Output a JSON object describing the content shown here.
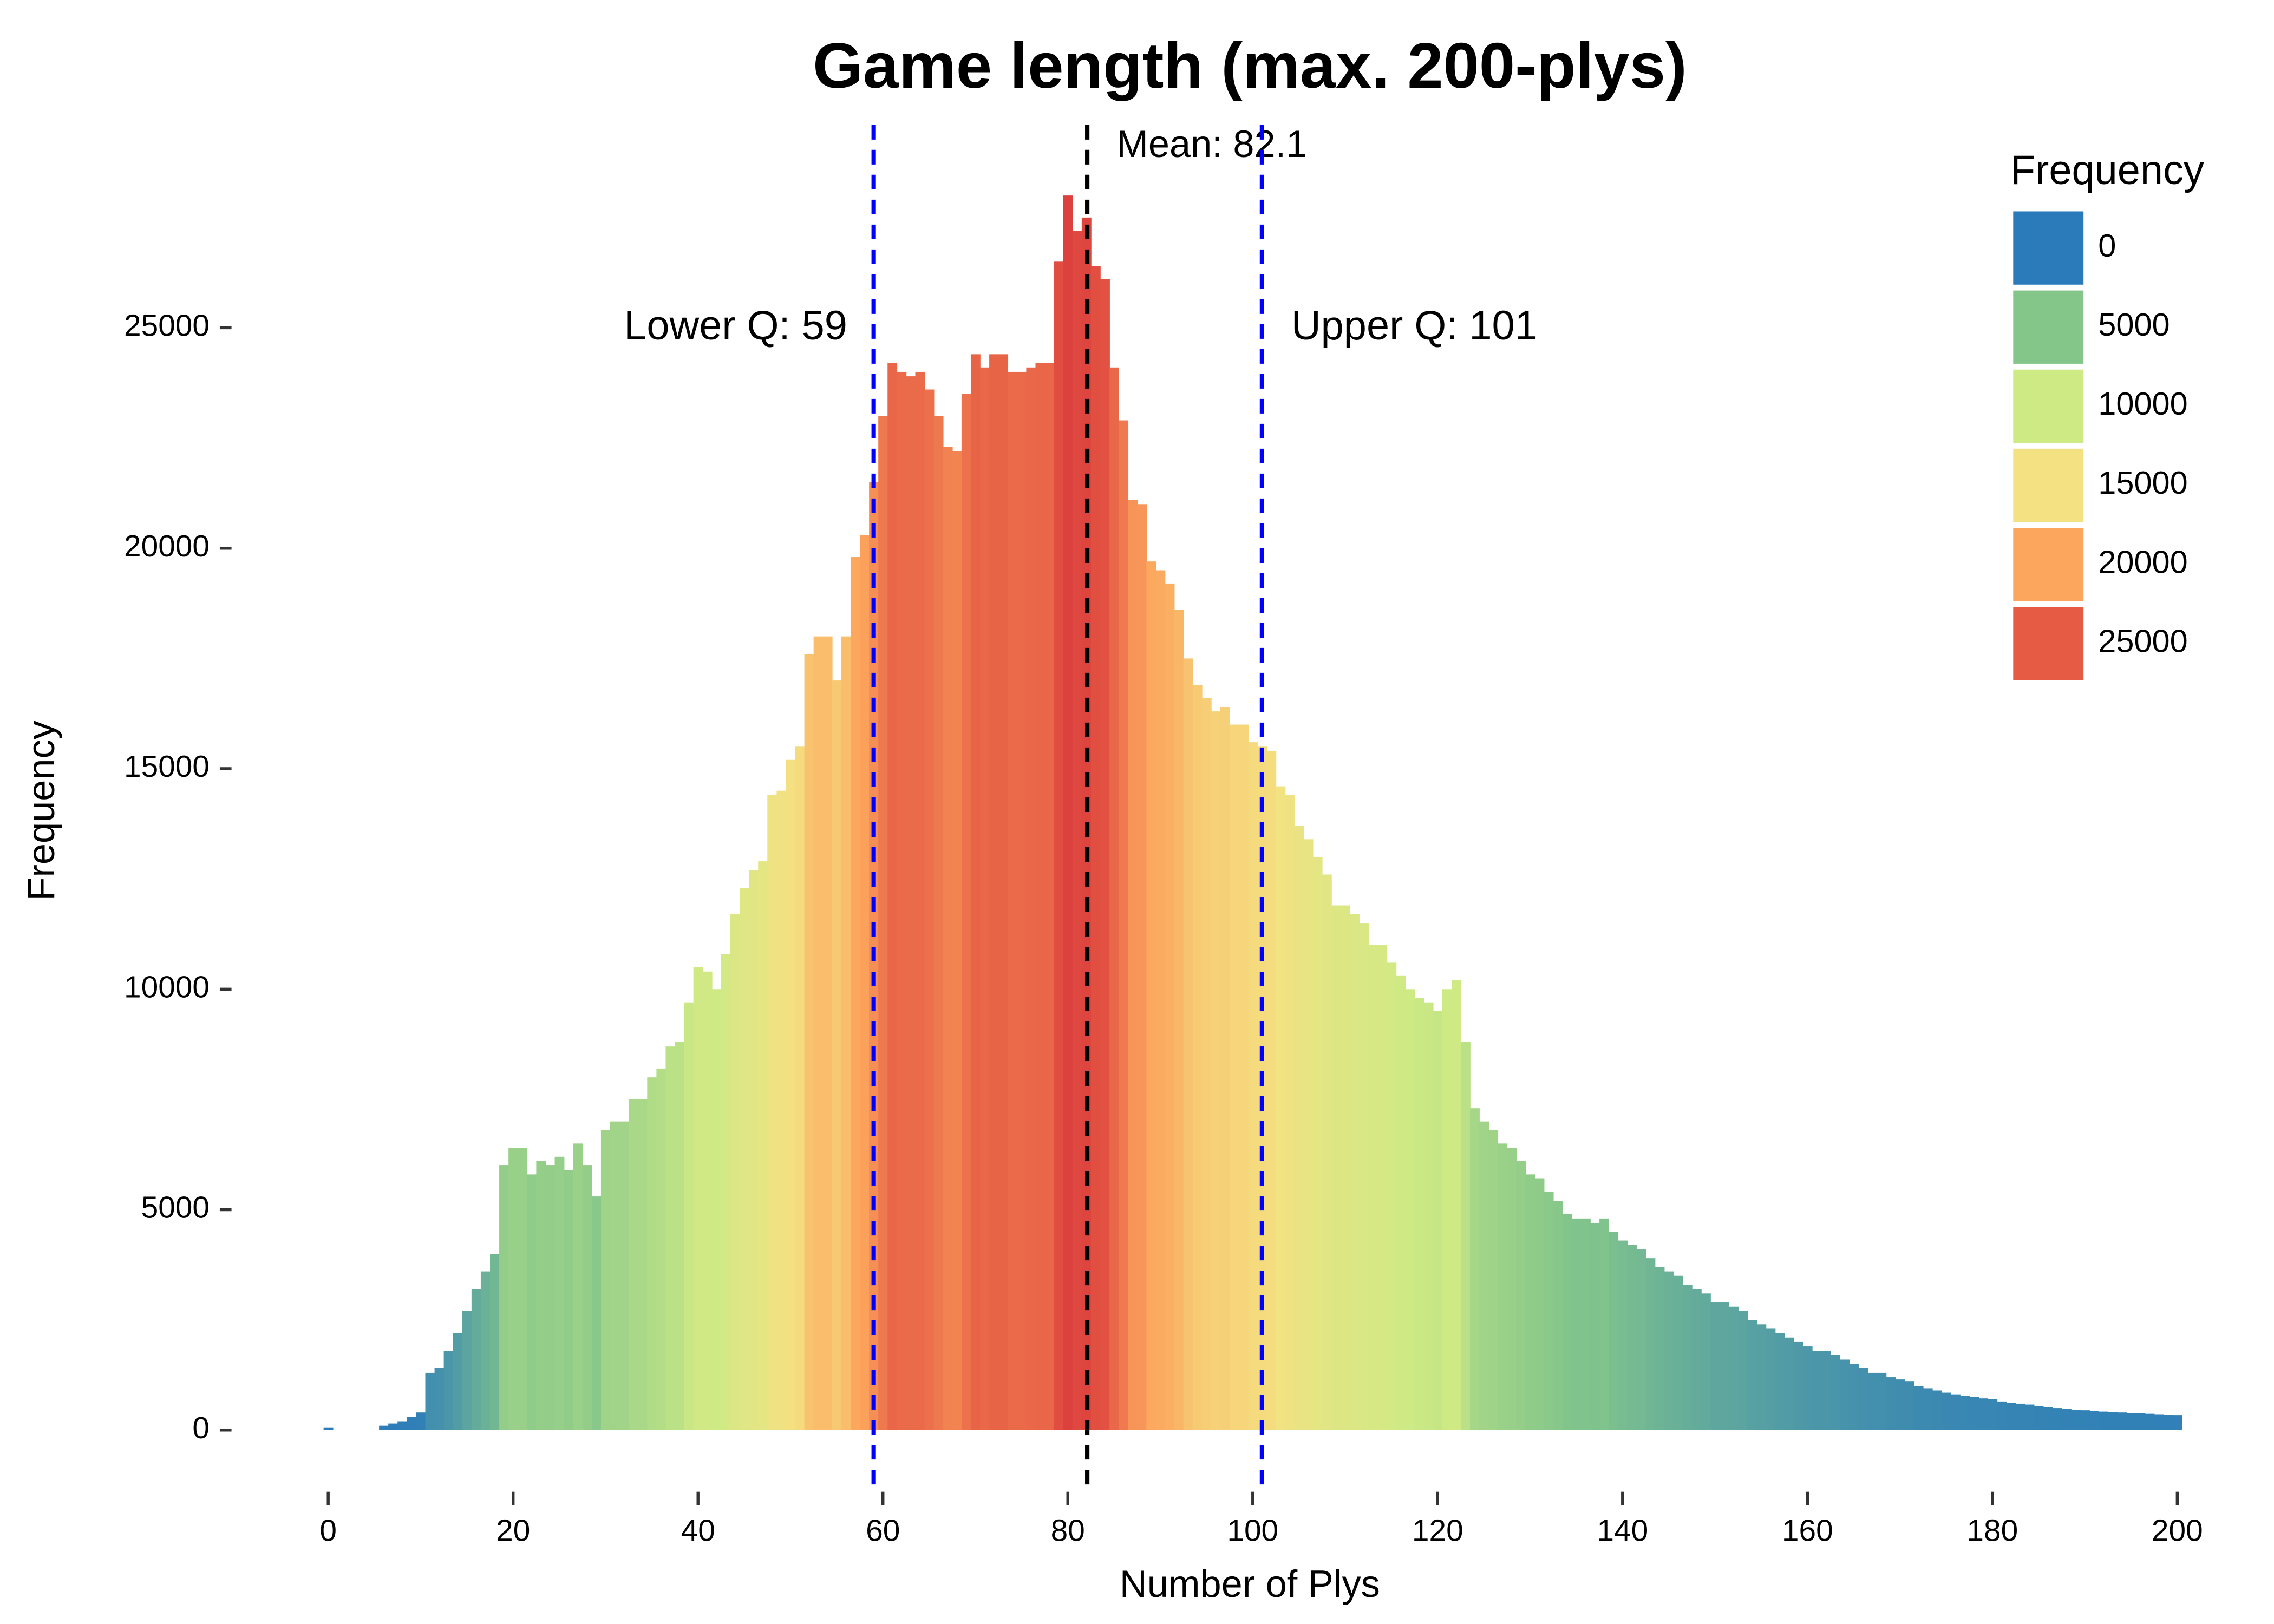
{
  "chart_data": {
    "type": "histogram",
    "title": "Game length (max. 200-plys)",
    "x_label": "Number of Plys",
    "y_label": "Frequency",
    "bins": [
      -0.5,
      0.5,
      1.5,
      2.5,
      3.5,
      4.5,
      5.5,
      6.5,
      7.5,
      8.5,
      9.5,
      10.5,
      11.5,
      12.5,
      13.5,
      14.5,
      15.5,
      16.5,
      17.5,
      18.5,
      19.5,
      20.5,
      21.5,
      22.5,
      23.5,
      24.5,
      25.5,
      26.5,
      27.5,
      28.5,
      29.5,
      30.5,
      31.5,
      32.5,
      33.5,
      34.5,
      35.5,
      36.5,
      37.5,
      38.5,
      39.5,
      40.5,
      41.5,
      42.5,
      43.5,
      44.5,
      45.5,
      46.5,
      47.5,
      48.5,
      49.5,
      50.5,
      51.5,
      52.5,
      53.5,
      54.5,
      55.5,
      56.5,
      57.5,
      58.5,
      59.5,
      60.5,
      61.5,
      62.5,
      63.5,
      64.5,
      65.5,
      66.5,
      67.5,
      68.5,
      69.5,
      70.5,
      71.5,
      72.5,
      73.5,
      74.5,
      75.5,
      76.5,
      77.5,
      78.5,
      79.5,
      80.5,
      81.5,
      82.5,
      83.5,
      84.5,
      85.5,
      86.5,
      87.5,
      88.5,
      89.5,
      90.5,
      91.5,
      92.5,
      93.5,
      94.5,
      95.5,
      96.5,
      97.5,
      98.5,
      99.5,
      100.5,
      101.5,
      102.5,
      103.5,
      104.5,
      105.5,
      106.5,
      107.5,
      108.5,
      109.5,
      110.5,
      111.5,
      112.5,
      113.5,
      114.5,
      115.5,
      116.5,
      117.5,
      118.5,
      119.5,
      120.5,
      121.5,
      122.5,
      123.5,
      124.5,
      125.5,
      126.5,
      127.5,
      128.5,
      129.5,
      130.5,
      131.5,
      132.5,
      133.5,
      134.5,
      135.5,
      136.5,
      137.5,
      138.5,
      139.5,
      140.5,
      141.5,
      142.5,
      143.5,
      144.5,
      145.5,
      146.5,
      147.5,
      148.5,
      149.5,
      150.5,
      151.5,
      152.5,
      153.5,
      154.5,
      155.5,
      156.5,
      157.5,
      158.5,
      159.5,
      160.5,
      161.5,
      162.5,
      163.5,
      164.5,
      165.5,
      166.5,
      167.5,
      168.5,
      169.5,
      170.5,
      171.5,
      172.5,
      173.5,
      174.5,
      175.5,
      176.5,
      177.5,
      178.5,
      179.5,
      180.5,
      181.5,
      182.5,
      183.5,
      184.5,
      185.5,
      186.5,
      187.5,
      188.5,
      189.5,
      190.5,
      191.5,
      192.5,
      193.5,
      194.5,
      195.5,
      196.5,
      197.5,
      198.5,
      199.5,
      200.5
    ],
    "counts": [
      50,
      0,
      0,
      0,
      0,
      0,
      100,
      150,
      200,
      300,
      400,
      1300,
      1400,
      1800,
      2200,
      2700,
      3200,
      3600,
      4000,
      6000,
      6400,
      6400,
      5800,
      6100,
      6000,
      6200,
      5900,
      6500,
      6000,
      5300,
      6800,
      7000,
      7000,
      7500,
      7500,
      8000,
      8200,
      8700,
      8800,
      9700,
      10500,
      10400,
      10000,
      10800,
      11700,
      12300,
      12700,
      12900,
      14400,
      14500,
      15200,
      15500,
      17600,
      18000,
      18000,
      17000,
      18000,
      19800,
      20300,
      21500,
      23000,
      24200,
      24000,
      23900,
      24000,
      23600,
      23000,
      22300,
      22200,
      23500,
      24400,
      24100,
      24400,
      24400,
      24000,
      24000,
      24100,
      24200,
      24200,
      26500,
      28000,
      27200,
      27500,
      26400,
      26100,
      24100,
      22900,
      21100,
      21000,
      19700,
      19500,
      19200,
      18600,
      17500,
      16900,
      16600,
      16300,
      16400,
      16000,
      16000,
      15600,
      15500,
      15400,
      14600,
      14400,
      13700,
      13400,
      13000,
      12600,
      11900,
      11900,
      11700,
      11500,
      11000,
      11000,
      10600,
      10300,
      10000,
      9800,
      9700,
      9500,
      10000,
      10200,
      8800,
      7300,
      7000,
      6800,
      6500,
      6400,
      6100,
      5800,
      5700,
      5400,
      5200,
      4900,
      4800,
      4800,
      4700,
      4800,
      4500,
      4300,
      4200,
      4100,
      3900,
      3700,
      3600,
      3500,
      3300,
      3200,
      3100,
      2900,
      2900,
      2800,
      2700,
      2500,
      2400,
      2300,
      2200,
      2100,
      2000,
      1900,
      1800,
      1800,
      1700,
      1600,
      1500,
      1400,
      1300,
      1300,
      1200,
      1150,
      1100,
      1000,
      950,
      900,
      850,
      800,
      780,
      750,
      720,
      700,
      650,
      620,
      600,
      580,
      550,
      520,
      500,
      480,
      460,
      450,
      430,
      420,
      410,
      400,
      390,
      380,
      370,
      360,
      350,
      340
    ],
    "xlim": [
      -5,
      202
    ],
    "xticks": [
      0,
      20,
      40,
      60,
      80,
      100,
      120,
      140,
      160,
      180,
      200
    ],
    "ylim": [
      -800,
      29600
    ],
    "yticks": [
      0,
      5000,
      10000,
      15000,
      20000,
      25000
    ],
    "grid": false,
    "legend": {
      "title": "Frequency",
      "position": "top-right"
    },
    "color_scale": {
      "values": [
        0,
        5000,
        10000,
        15000,
        20000,
        25000
      ],
      "colors": [
        "#2b7bba",
        "#84c68a",
        "#cdea85",
        "#f4e182",
        "#fca55d",
        "#e55b44"
      ]
    },
    "vlines": [
      {
        "value": 82.1,
        "label": "Mean: 82.1",
        "color": "#000000"
      },
      {
        "value": 59,
        "label": "Lower Q: 59",
        "color": "#0000ff"
      },
      {
        "value": 101,
        "label": "Upper Q: 101",
        "color": "#0000ff"
      }
    ]
  }
}
